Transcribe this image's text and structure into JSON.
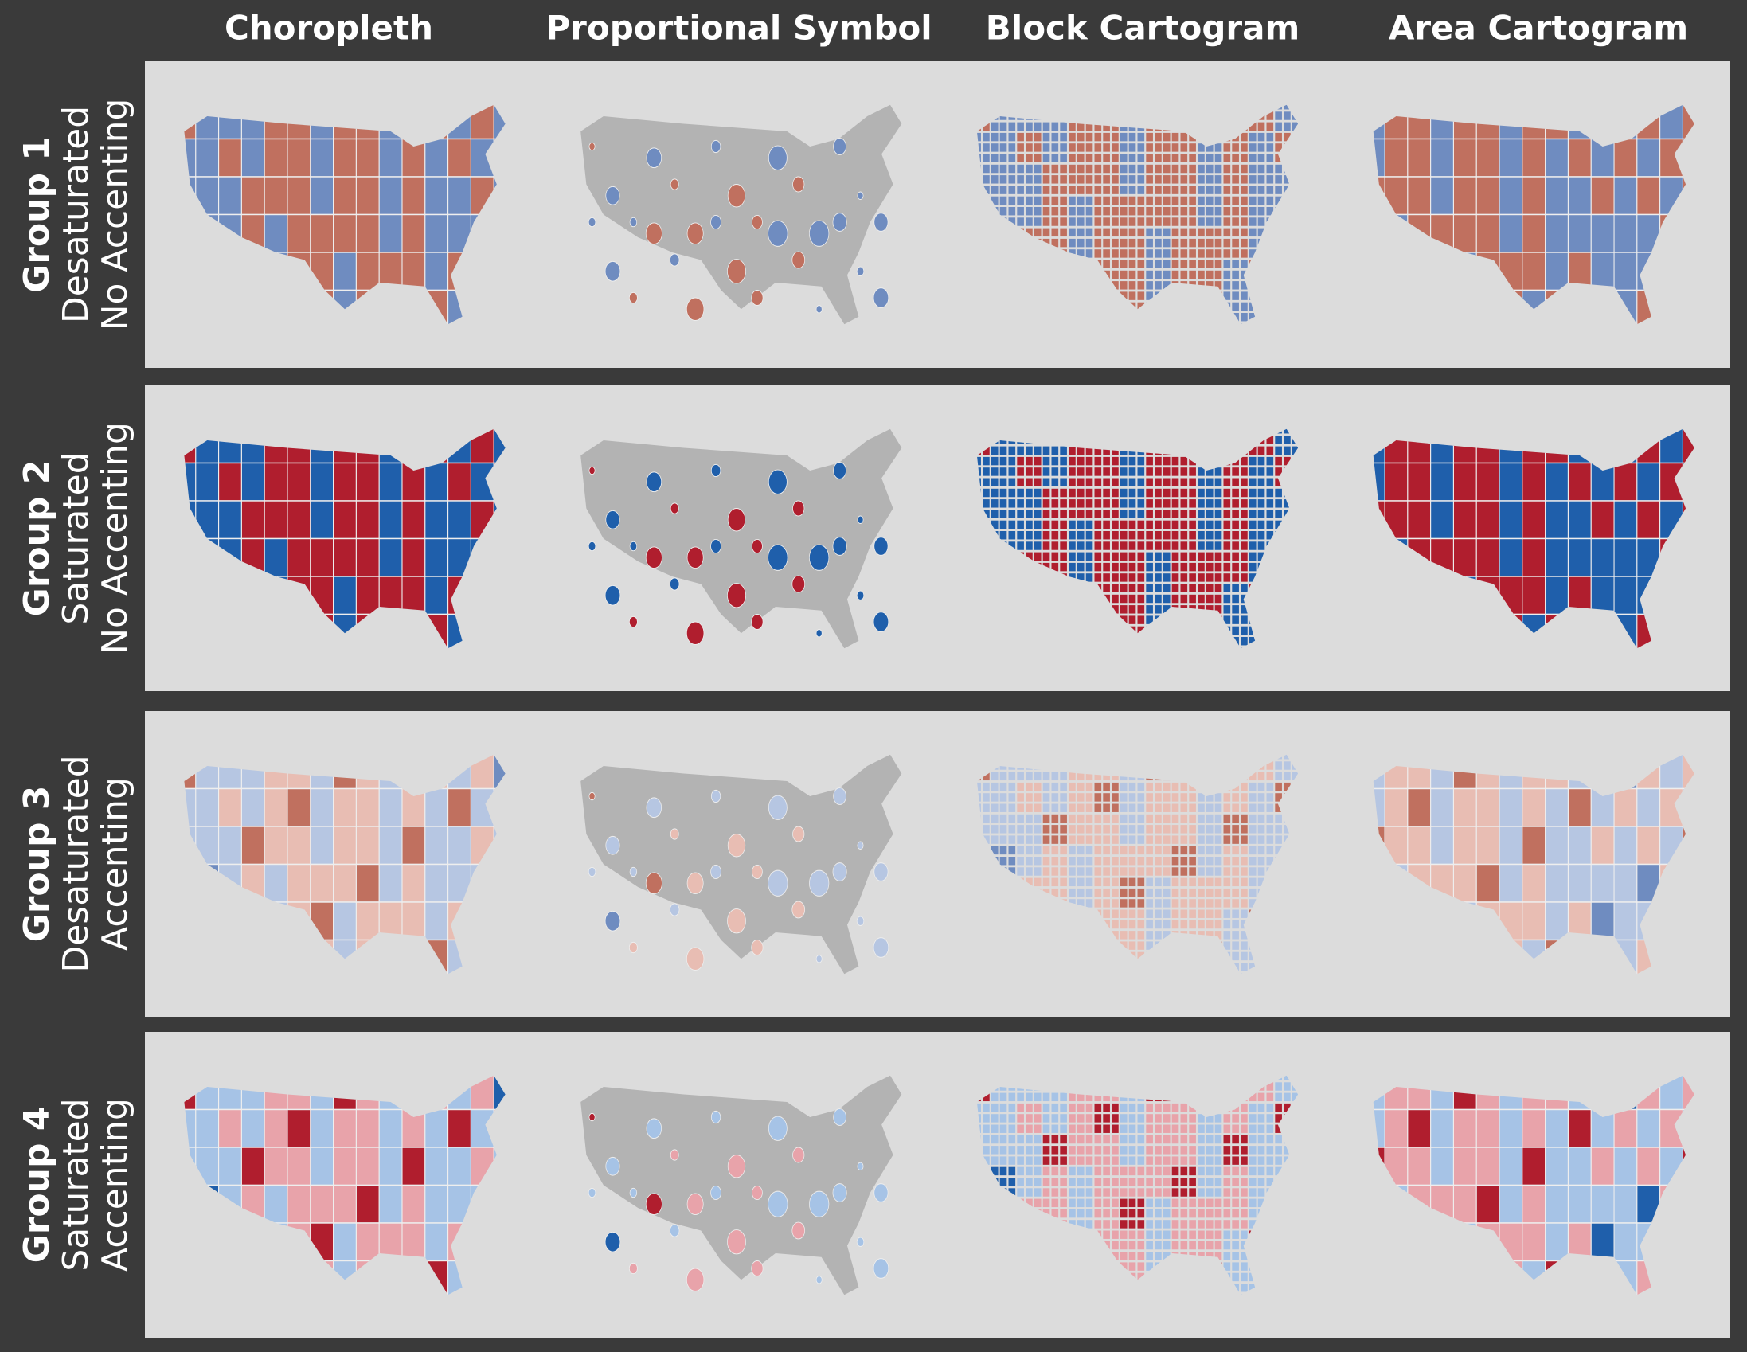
{
  "columns": [
    "Choropleth",
    "Proportional Symbol",
    "Block Cartogram",
    "Area Cartogram"
  ],
  "rows": [
    {
      "group": "Group 1",
      "saturation": "Desaturated",
      "accenting": "No Accenting"
    },
    {
      "group": "Group 2",
      "saturation": "Saturated",
      "accenting": "No Accenting"
    },
    {
      "group": "Group 3",
      "saturation": "Desaturated",
      "accenting": "Accenting"
    },
    {
      "group": "Group 4",
      "saturation": "Saturated",
      "accenting": "Accenting"
    }
  ]
}
